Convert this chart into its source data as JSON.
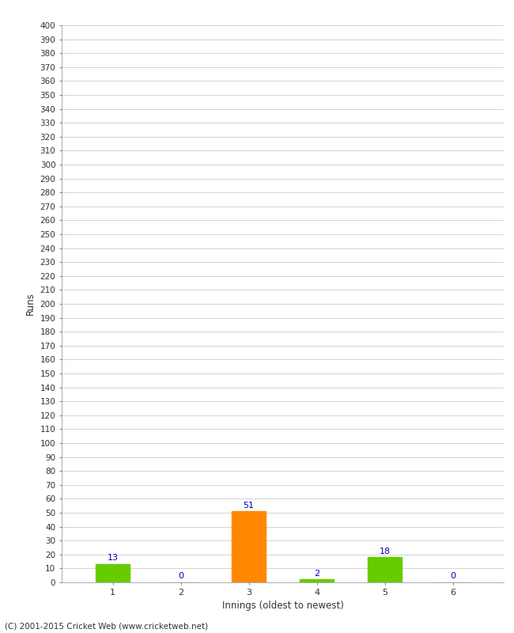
{
  "xlabel": "Innings (oldest to newest)",
  "ylabel": "Runs",
  "categories": [
    1,
    2,
    3,
    4,
    5,
    6
  ],
  "values": [
    13,
    0,
    51,
    2,
    18,
    0
  ],
  "bar_colors": [
    "#66cc00",
    "#66cc00",
    "#ff8800",
    "#66cc00",
    "#66cc00",
    "#66cc00"
  ],
  "ylim": [
    0,
    400
  ],
  "ytick_step": 10,
  "background_color": "#ffffff",
  "grid_color": "#cccccc",
  "label_color": "#0000bb",
  "tick_color": "#333333",
  "footer": "(C) 2001-2015 Cricket Web (www.cricketweb.net)"
}
